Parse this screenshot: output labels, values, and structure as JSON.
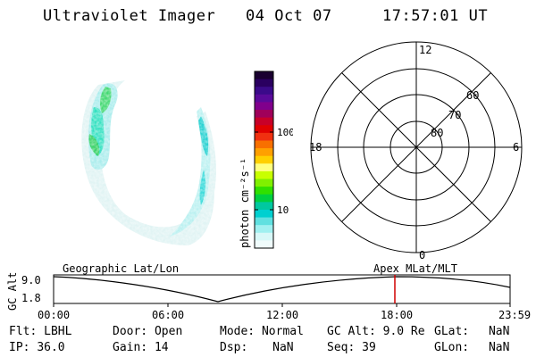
{
  "header": {
    "instrument": "Ultraviolet Imager",
    "date": "04 Oct 07",
    "time": "17:57:01 UT"
  },
  "colorbar": {
    "label": "photon cm⁻²s⁻¹",
    "ticks": [
      "100",
      "10"
    ],
    "colors": [
      "#1a0030",
      "#2a0060",
      "#3b0a8a",
      "#5a0a9a",
      "#80008c",
      "#a0005a",
      "#c80028",
      "#e00000",
      "#f03010",
      "#f87000",
      "#ffa000",
      "#ffd000",
      "#ffff80",
      "#c8ff00",
      "#80f000",
      "#30e000",
      "#00d040",
      "#00c8a0",
      "#00d0d0",
      "#60e0e0",
      "#a0f0f0",
      "#d8f8f8",
      "#f0fcfc"
    ]
  },
  "polar_grid": {
    "mlt_labels": {
      "top": "12",
      "left": "18",
      "right": "6",
      "bottom": "0"
    },
    "lat_labels": [
      "80",
      "70",
      "60"
    ]
  },
  "timeline": {
    "y_axis_title": "GC Alt",
    "y_ticks": [
      "9.0",
      "1.8"
    ],
    "left_label": "Geographic Lat/Lon",
    "right_label": "Apex MLat/MLT",
    "x_ticks": [
      "00:00",
      "06:00",
      "12:00",
      "18:00",
      "23:59"
    ]
  },
  "status": {
    "filter": {
      "label": "Flt:",
      "value": "LBHL"
    },
    "ip": {
      "label": "IP:",
      "value": "36.0"
    },
    "door": {
      "label": "Door:",
      "value": "Open"
    },
    "gain": {
      "label": "Gain:",
      "value": "14"
    },
    "mode": {
      "label": "Mode:",
      "value": "Normal"
    },
    "dsp": {
      "label": "Dsp:",
      "value": "NaN"
    },
    "gc_alt": {
      "label": "GC Alt:",
      "value": "9.0 Re"
    },
    "seq": {
      "label": "Seq:",
      "value": "39"
    },
    "glat": {
      "label": "GLat:",
      "value": "NaN"
    },
    "glon": {
      "label": "GLon:",
      "value": "NaN"
    }
  },
  "accent": {
    "cursor_line": "#d00000"
  }
}
